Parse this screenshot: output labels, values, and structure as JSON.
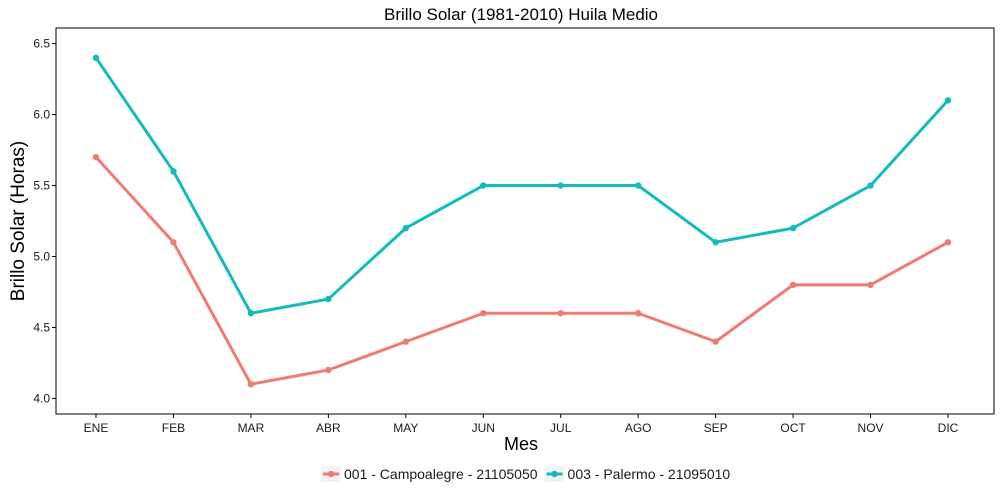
{
  "chart_data": {
    "type": "line",
    "title": "Brillo Solar (1981-2010)  Huila Medio",
    "xlabel": "Mes",
    "ylabel": "Brillo Solar (Horas)",
    "categories": [
      "ENE",
      "FEB",
      "MAR",
      "ABR",
      "MAY",
      "JUN",
      "JUL",
      "AGO",
      "SEP",
      "OCT",
      "NOV",
      "DIC"
    ],
    "ylim": [
      4.0,
      6.5
    ],
    "yticks": [
      "4.0",
      "4.5",
      "5.0",
      "5.5",
      "6.0",
      "6.5"
    ],
    "grid": false,
    "legend_position": "bottom",
    "series": [
      {
        "name": "001 - Campoalegre - 21105050",
        "color": "#F07B72",
        "values": [
          5.7,
          5.1,
          4.1,
          4.2,
          4.4,
          4.6,
          4.6,
          4.6,
          4.4,
          4.8,
          4.8,
          5.1
        ]
      },
      {
        "name": "003 - Palermo - 21095010",
        "color": "#14BABE",
        "values": [
          6.4,
          5.6,
          4.6,
          4.7,
          5.2,
          5.5,
          5.5,
          5.5,
          5.1,
          5.2,
          5.5,
          6.1
        ]
      }
    ]
  }
}
